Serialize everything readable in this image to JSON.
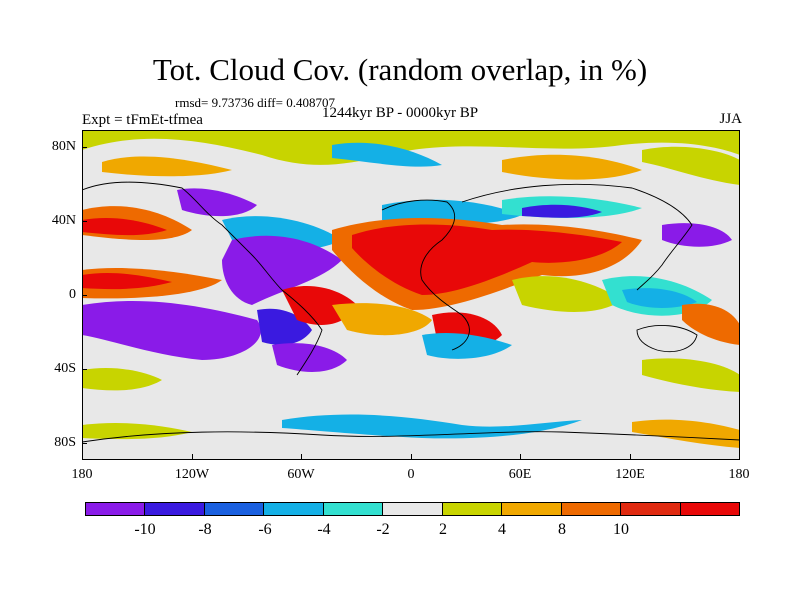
{
  "title": "Tot. Cloud Cov. (random overlap, in %)",
  "stats_text": "rmsd= 9.73736 diff= 0.408707",
  "experiment": "Expt = tFmEt-tfmea",
  "period": "1244kyr BP - 0000kyr BP",
  "season": "JJA",
  "lat_labels": [
    "80N",
    "40N",
    "0",
    "40S",
    "80S"
  ],
  "lon_labels": [
    "180",
    "120W",
    "60W",
    "0",
    "60E",
    "120E",
    "180"
  ],
  "colorbar": {
    "colors": [
      "#8a1be8",
      "#3a1ae0",
      "#1a60e0",
      "#14b0e6",
      "#33e0d0",
      "#e8e8e8",
      "#c8d400",
      "#f0a800",
      "#ee6a00",
      "#e02a10",
      "#e80808"
    ],
    "labels": [
      "-10",
      "-8",
      "-6",
      "-4",
      "-2",
      "2",
      "4",
      "8",
      "10"
    ]
  }
}
